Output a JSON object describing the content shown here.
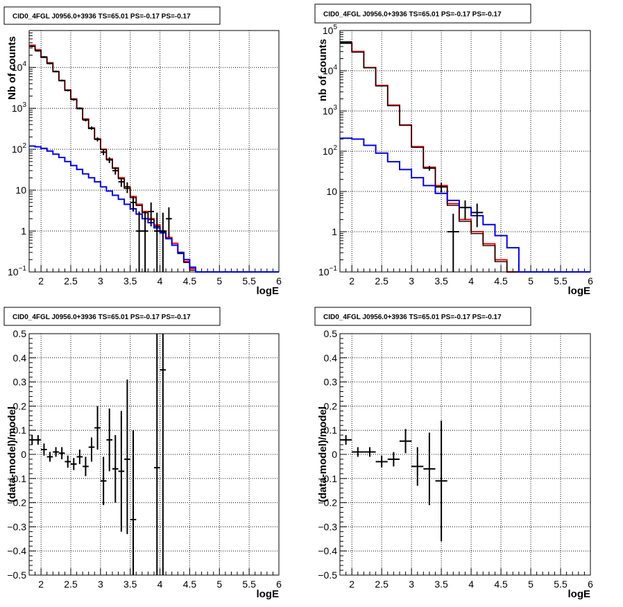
{
  "chart_data": [
    {
      "type": "line",
      "title": "CID0_4FGL J0956.0+3936 TS=65.01 PS=-0.17 PS=-0.17",
      "xlabel": "logE",
      "ylabel": "Nb of counts",
      "xlim": [
        1.8,
        6.0
      ],
      "ylim": [
        0.1,
        80000
      ],
      "yscale": "log",
      "grid": true,
      "x_ticks": [
        "2",
        "2.5",
        "3",
        "3.5",
        "4",
        "4.5",
        "5",
        "5.5",
        "6"
      ],
      "y_ticks": [
        {
          "base": "10",
          "exp": "−1",
          "value": 0.1
        },
        {
          "base": "1",
          "exp": "",
          "value": 1
        },
        {
          "base": "10",
          "exp": "",
          "value": 10
        },
        {
          "base": "10",
          "exp": "2",
          "value": 100
        },
        {
          "base": "10",
          "exp": "3",
          "value": 1000
        },
        {
          "base": "10",
          "exp": "4",
          "value": 10000
        }
      ],
      "bin_edges": [
        1.8,
        1.9,
        2.0,
        2.1,
        2.2,
        2.3,
        2.4,
        2.5,
        2.6,
        2.7,
        2.8,
        2.9,
        3.0,
        3.1,
        3.2,
        3.3,
        3.4,
        3.5,
        3.6,
        3.7,
        3.8,
        3.9,
        4.0,
        4.1,
        4.2,
        4.3,
        4.4,
        4.5,
        4.6,
        4.7,
        4.8,
        4.9,
        5.0,
        5.1,
        5.2,
        5.3,
        5.4,
        5.5,
        5.6,
        5.7,
        5.8,
        5.9,
        6.0
      ],
      "series": [
        {
          "color": "#ff0000",
          "values": [
            35000,
            27000,
            18000,
            13000,
            8000,
            4800,
            2800,
            1700,
            1000,
            550,
            330,
            180,
            100,
            58,
            35,
            20,
            12,
            7,
            4.5,
            3,
            2,
            1.4,
            1.0,
            0.7,
            0.5,
            0.3,
            0.18,
            0.12,
            0.1,
            0.1,
            0.1,
            0.1,
            0.1,
            0.1,
            0.1,
            0.1,
            0.1,
            0.1,
            0.1,
            0.1,
            0.1,
            0.1
          ]
        },
        {
          "color": "#000000",
          "values": [
            33000,
            26000,
            17500,
            12500,
            7800,
            4700,
            2750,
            1650,
            980,
            530,
            320,
            175,
            98,
            56,
            34,
            19,
            11,
            6.5,
            4.2,
            2.8,
            1.9,
            1.3,
            0.95,
            0.65,
            0.45,
            0.28,
            0.17,
            0.11,
            0.1,
            0.1,
            0.1,
            0.1,
            0.1,
            0.1,
            0.1,
            0.1,
            0.1,
            0.1,
            0.1,
            0.1,
            0.1,
            0.1
          ]
        },
        {
          "color": "#0000e6",
          "values": [
            120,
            115,
            105,
            90,
            76,
            63,
            50,
            40,
            32,
            25,
            20,
            16,
            12,
            9.5,
            7.5,
            6,
            4.5,
            3.5,
            2.6,
            2,
            1.6,
            1.2,
            0.9,
            0.65,
            0.45,
            0.3,
            0.2,
            0.13,
            0.1,
            0.1,
            0.1,
            0.1,
            0.1,
            0.1,
            0.1,
            0.1,
            0.1,
            0.1,
            0.1,
            0.1,
            0.1,
            0.1
          ]
        }
      ],
      "points": [
        {
          "x": 1.85,
          "y": 33000,
          "ylo": 31500,
          "yhi": 34500
        },
        {
          "x": 1.95,
          "y": 25500,
          "ylo": 24500,
          "yhi": 26500
        },
        {
          "x": 2.05,
          "y": 18000,
          "ylo": 17200,
          "yhi": 18800
        },
        {
          "x": 2.15,
          "y": 12500,
          "ylo": 11900,
          "yhi": 13100
        },
        {
          "x": 2.25,
          "y": 8000,
          "ylo": 7600,
          "yhi": 8400
        },
        {
          "x": 2.35,
          "y": 4800,
          "ylo": 4550,
          "yhi": 5050
        },
        {
          "x": 2.45,
          "y": 2750,
          "ylo": 2600,
          "yhi": 2900
        },
        {
          "x": 2.55,
          "y": 1650,
          "ylo": 1550,
          "yhi": 1750
        },
        {
          "x": 2.65,
          "y": 1000,
          "ylo": 940,
          "yhi": 1060
        },
        {
          "x": 2.75,
          "y": 520,
          "ylo": 480,
          "yhi": 560
        },
        {
          "x": 2.85,
          "y": 330,
          "ylo": 300,
          "yhi": 360
        },
        {
          "x": 2.95,
          "y": 175,
          "ylo": 155,
          "yhi": 195
        },
        {
          "x": 3.05,
          "y": 85,
          "ylo": 72,
          "yhi": 98
        },
        {
          "x": 3.15,
          "y": 55,
          "ylo": 46,
          "yhi": 64
        },
        {
          "x": 3.25,
          "y": 30,
          "ylo": 24,
          "yhi": 36
        },
        {
          "x": 3.35,
          "y": 16,
          "ylo": 12,
          "yhi": 20
        },
        {
          "x": 3.45,
          "y": 12,
          "ylo": 8.5,
          "yhi": 15.5
        },
        {
          "x": 3.55,
          "y": 5,
          "ylo": 3,
          "yhi": 7
        },
        {
          "x": 3.65,
          "y": 1,
          "ylo": 0.1,
          "yhi": 3
        },
        {
          "x": 3.75,
          "y": 1,
          "ylo": 0.1,
          "yhi": 3
        },
        {
          "x": 3.85,
          "y": 3,
          "ylo": 1.3,
          "yhi": 5
        },
        {
          "x": 3.95,
          "y": 1,
          "ylo": 0.1,
          "yhi": 2.8
        },
        {
          "x": 4.05,
          "y": 1,
          "ylo": 0.1,
          "yhi": 2.8
        },
        {
          "x": 4.15,
          "y": 2,
          "ylo": 0.7,
          "yhi": 3.8
        }
      ]
    },
    {
      "type": "line",
      "title": "CID0_4FGL J0956.0+3936 TS=65.01 PS=-0.17 PS=-0.17",
      "xlabel": "logE",
      "ylabel": "nb of counts",
      "xlim": [
        1.8,
        6.0
      ],
      "ylim": [
        0.1,
        100000
      ],
      "yscale": "log",
      "grid": true,
      "x_ticks": [
        "2",
        "2.5",
        "3",
        "3.5",
        "4",
        "4.5",
        "5",
        "5.5",
        "6"
      ],
      "y_ticks": [
        {
          "base": "10",
          "exp": "−1",
          "value": 0.1
        },
        {
          "base": "1",
          "exp": "",
          "value": 1
        },
        {
          "base": "10",
          "exp": "",
          "value": 10
        },
        {
          "base": "10",
          "exp": "2",
          "value": 100
        },
        {
          "base": "10",
          "exp": "3",
          "value": 1000
        },
        {
          "base": "10",
          "exp": "4",
          "value": 10000
        },
        {
          "base": "10",
          "exp": "5",
          "value": 100000
        }
      ],
      "bin_edges": [
        1.8,
        2.0,
        2.2,
        2.4,
        2.6,
        2.8,
        3.0,
        3.2,
        3.4,
        3.6,
        3.8,
        4.0,
        4.2,
        4.4,
        4.6,
        4.8,
        5.0,
        5.2,
        5.4,
        5.6,
        5.8,
        6.0
      ],
      "series": [
        {
          "color": "#ff0000",
          "values": [
            50000,
            30000,
            12000,
            4300,
            1400,
            450,
            130,
            40,
            14,
            5,
            2,
            1,
            0.5,
            0.2,
            0.1,
            0.1,
            0.1,
            0.1,
            0.1,
            0.1,
            0.1
          ]
        },
        {
          "color": "#000000",
          "values": [
            48000,
            29000,
            11800,
            4200,
            1350,
            440,
            125,
            38,
            13,
            4.5,
            1.8,
            0.9,
            0.45,
            0.18,
            0.1,
            0.1,
            0.1,
            0.1,
            0.1,
            0.1,
            0.1
          ]
        },
        {
          "color": "#0000e6",
          "values": [
            210,
            200,
            140,
            90,
            55,
            35,
            22,
            14,
            9,
            6,
            4,
            2.5,
            1.5,
            0.8,
            0.4,
            0.1,
            0.1,
            0.1,
            0.1,
            0.1,
            0.1
          ]
        }
      ],
      "points": [
        {
          "x": 1.9,
          "y": 52000,
          "ylo": 50500,
          "yhi": 53500
        },
        {
          "x": 3.3,
          "y": 38,
          "ylo": 33,
          "yhi": 43
        },
        {
          "x": 3.5,
          "y": 13,
          "ylo": 9.5,
          "yhi": 16.5
        },
        {
          "x": 3.7,
          "y": 1,
          "ylo": 0.1,
          "yhi": 2.8
        },
        {
          "x": 3.9,
          "y": 4,
          "ylo": 2,
          "yhi": 6
        },
        {
          "x": 4.1,
          "y": 3,
          "ylo": 1.3,
          "yhi": 5
        }
      ]
    },
    {
      "type": "scatter",
      "title": "CID0_4FGL J0956.0+3936 TS=65.01 PS=-0.17 PS=-0.17",
      "xlabel": "logE",
      "ylabel": "(data-model)/model",
      "xlim": [
        1.8,
        6.0
      ],
      "ylim": [
        -0.5,
        0.5
      ],
      "grid": true,
      "x_ticks": [
        "2",
        "2.5",
        "3",
        "3.5",
        "4",
        "4.5",
        "5",
        "5.5",
        "6"
      ],
      "y_ticks": [
        "−0.5",
        "−0.4",
        "−0.3",
        "−0.2",
        "−0.1",
        "0",
        "0.1",
        "0.2",
        "0.3",
        "0.4",
        "0.5"
      ],
      "points": [
        {
          "x": 1.85,
          "y": 0.06,
          "ylo": 0.04,
          "yhi": 0.08
        },
        {
          "x": 1.95,
          "y": 0.06,
          "ylo": 0.04,
          "yhi": 0.08
        },
        {
          "x": 2.05,
          "y": 0.02,
          "ylo": -0.005,
          "yhi": 0.045
        },
        {
          "x": 2.15,
          "y": -0.01,
          "ylo": -0.03,
          "yhi": 0.01
        },
        {
          "x": 2.25,
          "y": 0.01,
          "ylo": -0.01,
          "yhi": 0.03
        },
        {
          "x": 2.35,
          "y": 0.005,
          "ylo": -0.02,
          "yhi": 0.03
        },
        {
          "x": 2.45,
          "y": -0.03,
          "ylo": -0.055,
          "yhi": -0.005
        },
        {
          "x": 2.55,
          "y": -0.04,
          "ylo": -0.065,
          "yhi": -0.015
        },
        {
          "x": 2.65,
          "y": -0.01,
          "ylo": -0.04,
          "yhi": 0.02
        },
        {
          "x": 2.75,
          "y": -0.05,
          "ylo": -0.09,
          "yhi": -0.01
        },
        {
          "x": 2.85,
          "y": 0.03,
          "ylo": -0.03,
          "yhi": 0.07
        },
        {
          "x": 2.95,
          "y": 0.11,
          "ylo": 0.02,
          "yhi": 0.2
        },
        {
          "x": 3.05,
          "y": -0.11,
          "ylo": -0.21,
          "yhi": -0.01
        },
        {
          "x": 3.15,
          "y": 0.06,
          "ylo": -0.07,
          "yhi": 0.19
        },
        {
          "x": 3.25,
          "y": -0.06,
          "ylo": -0.2,
          "yhi": 0.08
        },
        {
          "x": 3.35,
          "y": -0.07,
          "ylo": -0.32,
          "yhi": 0.18
        },
        {
          "x": 3.45,
          "y": -0.02,
          "ylo": -0.33,
          "yhi": 0.31
        },
        {
          "x": 3.55,
          "y": -0.27,
          "ylo": -0.5,
          "yhi": 0.1
        },
        {
          "x": 3.95,
          "y": -0.055,
          "ylo": -0.5,
          "yhi": 0.5
        },
        {
          "x": 4.05,
          "y": 0.35,
          "ylo": -0.5,
          "yhi": 0.5
        }
      ]
    },
    {
      "type": "scatter",
      "title": "CID0_4FGL J0956.0+3936 TS=65.01 PS=-0.17 PS=-0.17",
      "xlabel": "logE",
      "ylabel": "(data-model)/model",
      "xlim": [
        1.8,
        6.0
      ],
      "ylim": [
        -0.5,
        0.5
      ],
      "grid": true,
      "x_ticks": [
        "2",
        "2.5",
        "3",
        "3.5",
        "4",
        "4.5",
        "5",
        "5.5",
        "6"
      ],
      "y_ticks": [
        "−0.5",
        "−0.4",
        "−0.3",
        "−0.2",
        "−0.1",
        "0",
        "0.1",
        "0.2",
        "0.3",
        "0.4",
        "0.5"
      ],
      "points": [
        {
          "x": 1.9,
          "y": 0.06,
          "ylo": 0.04,
          "yhi": 0.08
        },
        {
          "x": 2.1,
          "y": 0.01,
          "ylo": -0.01,
          "yhi": 0.03
        },
        {
          "x": 2.3,
          "y": 0.01,
          "ylo": -0.01,
          "yhi": 0.03
        },
        {
          "x": 2.5,
          "y": -0.03,
          "ylo": -0.055,
          "yhi": -0.005
        },
        {
          "x": 2.7,
          "y": -0.02,
          "ylo": -0.05,
          "yhi": 0.01
        },
        {
          "x": 2.9,
          "y": 0.055,
          "ylo": 0.005,
          "yhi": 0.105
        },
        {
          "x": 3.1,
          "y": -0.05,
          "ylo": -0.13,
          "yhi": 0.03
        },
        {
          "x": 3.3,
          "y": -0.06,
          "ylo": -0.21,
          "yhi": 0.09
        },
        {
          "x": 3.5,
          "y": -0.11,
          "ylo": -0.36,
          "yhi": 0.14
        }
      ]
    }
  ]
}
